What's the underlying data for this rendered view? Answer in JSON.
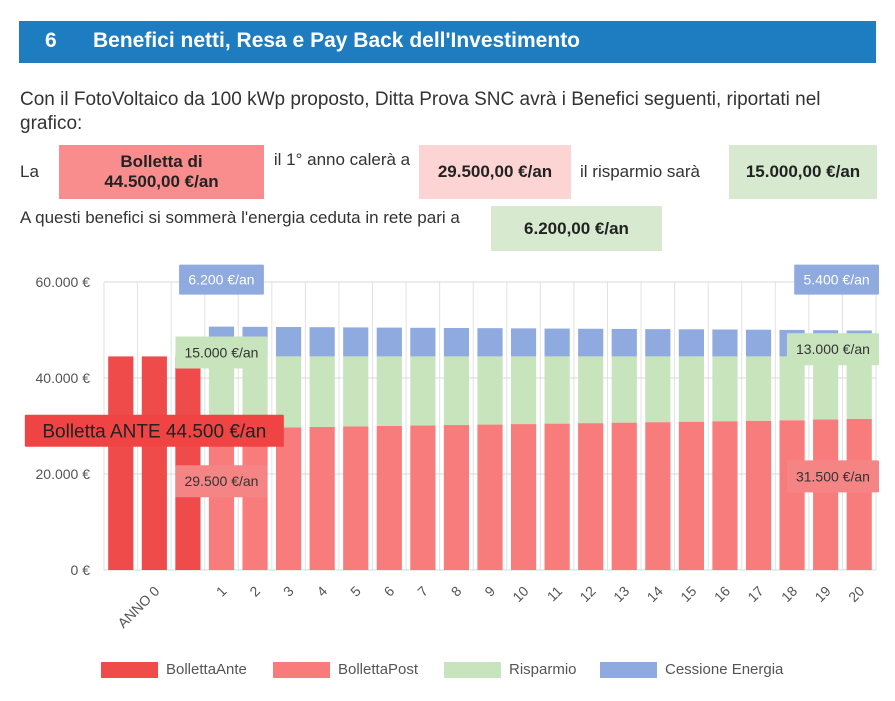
{
  "header": {
    "number": "6",
    "title": "Benefici netti, Resa e Pay Back dell'Investimento"
  },
  "intro": "Con il FotoVoltaico da 100 kWp proposto, Ditta Prova SNC avrà i Benefici seguenti, riportati nel grafico:",
  "row1": {
    "prefix": "La",
    "bill_box": "Bolletta di 44.500,00 €/an",
    "mid_text": "il 1° anno calerà a",
    "drop_box": "29.500,00 €/an",
    "saving_text": "il risparmio sarà",
    "saving_box": "15.000,00 €/an"
  },
  "row2": {
    "text": "A questi benefici si sommerà l'energia ceduta in rete pari a",
    "energy_box": "6.200,00 €/an"
  },
  "colors": {
    "bolletta_ante": "#ef4b4b",
    "bolletta_post": "#f87c7c",
    "risparmio": "#c8e4bd",
    "cessione": "#8eaade",
    "header_bg": "#1e7cc0"
  },
  "chart_data": {
    "type": "bar",
    "stacked": true,
    "ylim": [
      0,
      60000
    ],
    "yticks": [
      "0 €",
      "20.000 €",
      "40.000 €",
      "60.000 €"
    ],
    "ytick_values": [
      0,
      20000,
      40000,
      60000
    ],
    "categories": [
      "",
      "ANNO 0",
      "",
      "1",
      "2",
      "3",
      "4",
      "5",
      "6",
      "7",
      "8",
      "9",
      "10",
      "11",
      "12",
      "13",
      "14",
      "15",
      "16",
      "17",
      "18",
      "19",
      "20"
    ],
    "series": [
      {
        "name": "BollettaAnte",
        "values": [
          44500,
          44500,
          44500,
          0,
          0,
          0,
          0,
          0,
          0,
          0,
          0,
          0,
          0,
          0,
          0,
          0,
          0,
          0,
          0,
          0,
          0,
          0,
          0
        ]
      },
      {
        "name": "BollettaPost",
        "values": [
          0,
          0,
          0,
          29500,
          29600,
          29700,
          29800,
          29900,
          30000,
          30100,
          30200,
          30300,
          30400,
          30500,
          30600,
          30700,
          30800,
          30900,
          31000,
          31100,
          31200,
          31350,
          31500
        ]
      },
      {
        "name": "Risparmio",
        "values": [
          0,
          0,
          0,
          15000,
          14900,
          14800,
          14700,
          14600,
          14500,
          14400,
          14300,
          14200,
          14100,
          14000,
          13900,
          13800,
          13700,
          13600,
          13500,
          13400,
          13300,
          13150,
          13000
        ]
      },
      {
        "name": "Cessione Energia",
        "values": [
          0,
          0,
          0,
          6200,
          6160,
          6120,
          6080,
          6040,
          6000,
          5960,
          5920,
          5880,
          5840,
          5800,
          5760,
          5720,
          5680,
          5640,
          5600,
          5560,
          5520,
          5460,
          5400
        ]
      }
    ],
    "annotations": [
      {
        "text": "Bolletta ANTE 44.500 €/an",
        "x_index": 1,
        "y": 29000,
        "style": "ante"
      },
      {
        "text": "6.200 €/an",
        "x_index": 3,
        "y": 60500,
        "style": "cessione"
      },
      {
        "text": "15.000 €/an",
        "x_index": 3,
        "y": 45300,
        "style": "risparmio"
      },
      {
        "text": "29.500 €/an",
        "x_index": 3,
        "y": 18500,
        "style": "post"
      },
      {
        "text": "5.400 €/an",
        "x_index": 22,
        "y": 60500,
        "style": "cessione"
      },
      {
        "text": "13.000 €/an",
        "x_index": 22,
        "y": 46000,
        "style": "risparmio"
      },
      {
        "text": "31.500 €/an",
        "x_index": 22,
        "y": 19500,
        "style": "post"
      }
    ],
    "legend_position": "bottom",
    "grid": true
  }
}
